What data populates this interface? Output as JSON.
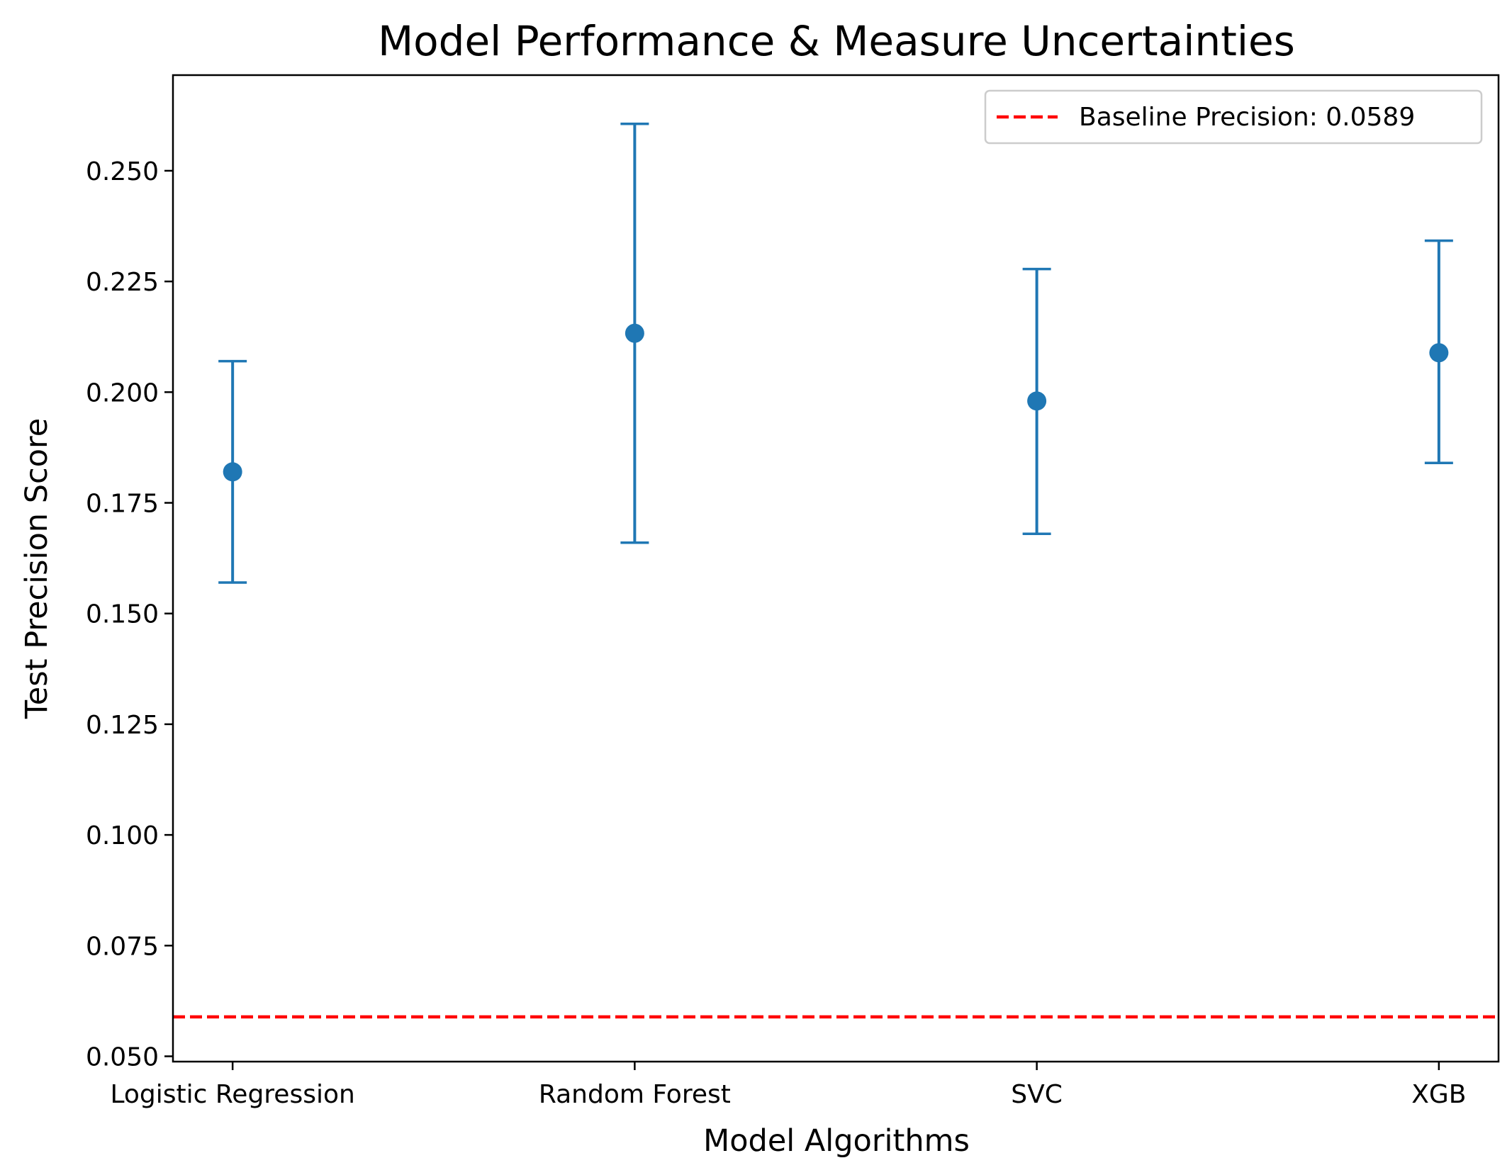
{
  "chart_data": {
    "type": "scatter",
    "title": "Model Performance & Measure Uncertainties",
    "xlabel": "Model Algorithms",
    "ylabel": "Test Precision Score",
    "categories": [
      "Logistic Regression",
      "Random Forest",
      "SVC",
      "XGB"
    ],
    "series": [
      {
        "values": [
          0.182,
          0.2133,
          0.198,
          0.2089
        ],
        "error_low": [
          0.157,
          0.166,
          0.168,
          0.184
        ],
        "error_high": [
          0.207,
          0.2606,
          0.2278,
          0.2342
        ],
        "color": "#1f77b4"
      }
    ],
    "baseline": {
      "value": 0.0589,
      "label": "Baseline Precision: 0.0589",
      "color": "#ff0000",
      "style": "dashed"
    },
    "yticks": [
      "0.050",
      "0.075",
      "0.100",
      "0.125",
      "0.150",
      "0.175",
      "0.200",
      "0.225",
      "0.250"
    ],
    "ylim": [
      0.0488,
      0.2716
    ],
    "legend_position": "top-right",
    "grid": false
  }
}
